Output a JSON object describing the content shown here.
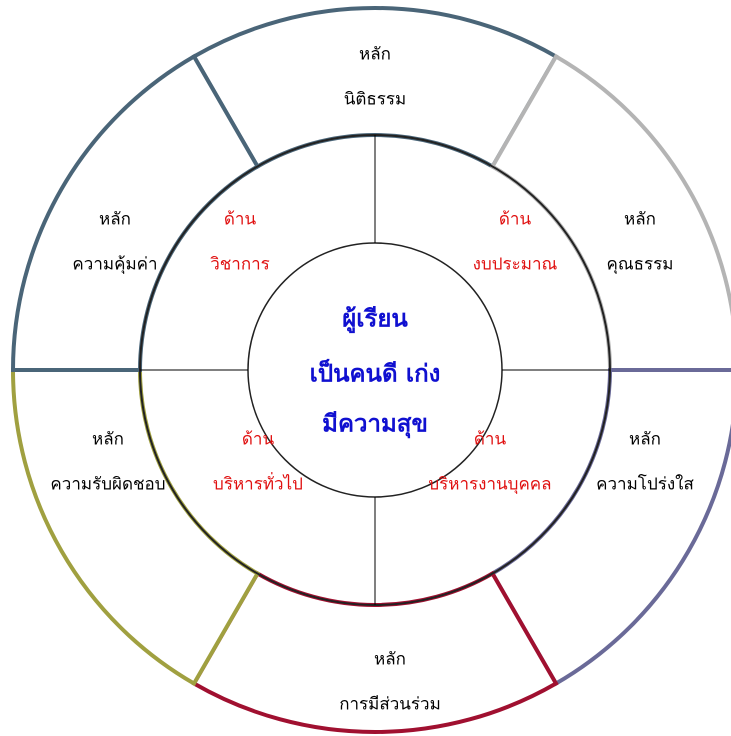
{
  "center": {
    "lines": [
      "ผู้เรียน",
      "เป็นคนดี เก่ง",
      "มีความสุข"
    ]
  },
  "inner_areas": [
    {
      "heading": "ด้าน",
      "name": "วิชาการ"
    },
    {
      "heading": "ด้าน",
      "name": "งบประมาณ"
    },
    {
      "heading": "ด้าน",
      "name": "บริหารทั่วไป"
    },
    {
      "heading": "ด้าน",
      "name": "บริหารงานบุคคล"
    }
  ],
  "principles": [
    {
      "heading": "หลัก",
      "name": "นิติธรรม"
    },
    {
      "heading": "หลัก",
      "name": "คุณธรรม"
    },
    {
      "heading": "หลัก",
      "name": "ความโปร่งใส"
    },
    {
      "heading": "หลัก",
      "name": "การมีส่วนร่วม"
    },
    {
      "heading": "หลัก",
      "name": "ความรับผิดชอบ"
    },
    {
      "heading": "หลัก",
      "name": "ความคุ้มค่า"
    }
  ]
}
